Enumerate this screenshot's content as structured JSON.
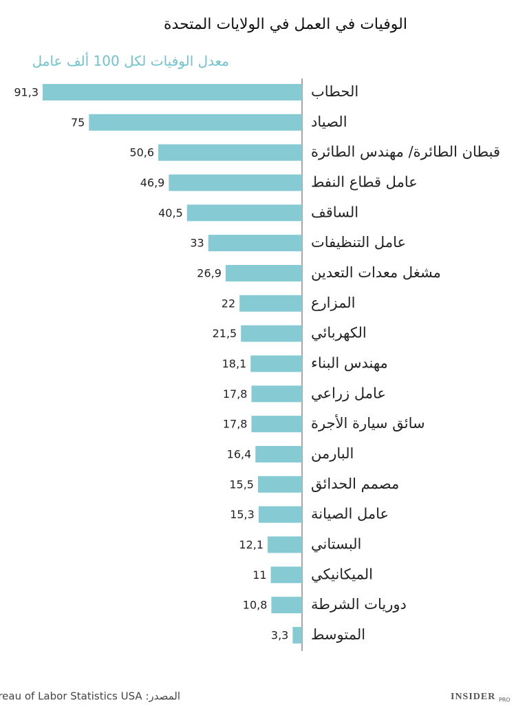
{
  "chart_data": {
    "type": "bar",
    "orientation": "horizontal",
    "title": "الوفيات في العمل في الولايات المتحدة",
    "subtitle": "معدل الوفيات لكل 100 ألف عامل",
    "categories": [
      "الحطاب",
      "الصياد",
      "قبطان الطائرة/ مهندس الطائرة",
      "عامل قطاع النفط",
      "الساقف",
      "عامل التنظيفات",
      "مشغل معدات التعدين",
      "المزارع",
      "الكهربائي",
      "مهندس البناء",
      "عامل زراعي",
      "سائق سيارة الأجرة",
      "البارمن",
      "مصمم الحدائق",
      "عامل الصيانة",
      "البستاني",
      "الميكانيكي",
      "دوريات الشرطة",
      "المتوسط"
    ],
    "values": [
      91.3,
      75,
      50.6,
      46.9,
      40.5,
      33,
      26.9,
      22,
      21.5,
      18.1,
      17.8,
      17.8,
      16.4,
      15.5,
      15.3,
      12.1,
      11,
      10.8,
      3.3
    ],
    "value_labels": [
      "91,3",
      "75",
      "50,6",
      "46,9",
      "40,5",
      "33",
      "26,9",
      "22",
      "21,5",
      "18,1",
      "17,8",
      "17,8",
      "16,4",
      "15,5",
      "15,3",
      "12,1",
      "11",
      "10,8",
      "3,3"
    ],
    "color": "#86cbd4",
    "source": "المصدر: Bureau of Labor Statistics USA",
    "logo": {
      "name": "INSIDER",
      "tag": "PRO"
    }
  }
}
